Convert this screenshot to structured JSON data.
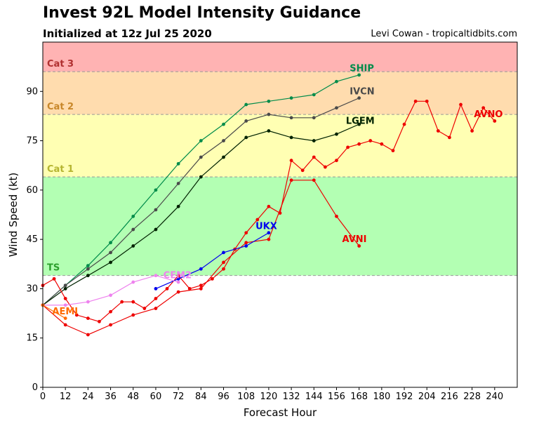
{
  "chart_data": {
    "type": "line",
    "title": "Invest 92L Model Intensity Guidance",
    "subtitle": "Initialized at 12z Jul 25 2020",
    "credit": "Levi Cowan - tropicaltidbits.com",
    "xlabel": "Forecast Hour",
    "ylabel": "Wind Speed (kt)",
    "xlim": [
      0,
      252
    ],
    "ylim": [
      0,
      105
    ],
    "xticks": [
      0,
      12,
      24,
      36,
      48,
      60,
      72,
      84,
      96,
      108,
      120,
      132,
      144,
      156,
      168,
      180,
      192,
      204,
      216,
      228,
      240
    ],
    "yticks": [
      0,
      15,
      30,
      45,
      60,
      75,
      90
    ],
    "bands": [
      {
        "name": "TS",
        "from": 34,
        "to": 64,
        "color": "#b3ffb3",
        "label_color": "#2ca02c"
      },
      {
        "name": "Cat 1",
        "from": 64,
        "to": 83,
        "color": "#ffffb3",
        "label_color": "#b5b530"
      },
      {
        "name": "Cat 2",
        "from": 83,
        "to": 96,
        "color": "#ffdcae",
        "label_color": "#c8872a"
      },
      {
        "name": "Cat 3",
        "from": 96,
        "to": 105,
        "color": "#ffb3b3",
        "label_color": "#b03030"
      }
    ],
    "series": [
      {
        "name": "SHIP",
        "color": "#008c4a",
        "x": [
          0,
          12,
          24,
          36,
          48,
          60,
          72,
          84,
          96,
          108,
          120,
          132,
          144,
          156,
          168
        ],
        "y": [
          25,
          31,
          37,
          44,
          52,
          60,
          68,
          75,
          80,
          86,
          87,
          88,
          89,
          93,
          95
        ]
      },
      {
        "name": "IVCN",
        "color": "#4a4a4a",
        "x": [
          0,
          12,
          24,
          36,
          48,
          60,
          72,
          84,
          96,
          108,
          120,
          132,
          144,
          156,
          168
        ],
        "y": [
          25,
          31,
          36,
          41,
          48,
          54,
          62,
          70,
          75,
          81,
          83,
          82,
          82,
          85,
          88
        ]
      },
      {
        "name": "LGEM",
        "color": "#002200",
        "x": [
          0,
          12,
          24,
          36,
          48,
          60,
          72,
          84,
          96,
          108,
          120,
          132,
          144,
          156,
          168
        ],
        "y": [
          25,
          30,
          34,
          38,
          43,
          48,
          55,
          64,
          70,
          76,
          78,
          76,
          75,
          77,
          80
        ]
      },
      {
        "name": "AVNO",
        "color": "#ee0000",
        "x": [
          0,
          6,
          12,
          18,
          24,
          30,
          36,
          42,
          48,
          54,
          60,
          66,
          72,
          78,
          84,
          90,
          96,
          102,
          108,
          114,
          120,
          126,
          132,
          138,
          144,
          150,
          156,
          162,
          168,
          174,
          180,
          186,
          192,
          198,
          204,
          210,
          216,
          222,
          228,
          234,
          240
        ],
        "y": [
          31,
          33,
          27,
          22,
          21,
          20,
          23,
          26,
          26,
          24,
          27,
          30,
          34,
          30,
          31,
          33,
          36,
          42,
          47,
          51,
          55,
          53,
          69,
          66,
          70,
          67,
          69,
          73,
          74,
          75,
          74,
          72,
          80,
          87,
          87,
          78,
          76,
          86,
          78,
          85,
          81
        ]
      },
      {
        "name": "AVNI",
        "color": "#ee0000",
        "x": [
          0,
          12,
          24,
          36,
          48,
          60,
          72,
          84,
          96,
          108,
          120,
          132,
          144,
          156,
          168
        ],
        "y": [
          25,
          19,
          16,
          19,
          22,
          24,
          29,
          30,
          38,
          44,
          45,
          63,
          63,
          52,
          43
        ]
      },
      {
        "name": "UKX",
        "color": "#0000ee",
        "x": [
          60,
          72,
          84,
          96,
          108,
          120
        ],
        "y": [
          30,
          33,
          36,
          41,
          43,
          47
        ]
      },
      {
        "name": "CEM2",
        "color": "#ee82ee",
        "x": [
          0,
          12,
          24,
          36,
          48,
          60,
          72
        ],
        "y": [
          25,
          25,
          26,
          28,
          32,
          34,
          32
        ]
      },
      {
        "name": "AEMI",
        "color": "#ff6a00",
        "x": [
          0,
          12
        ],
        "y": [
          25,
          21
        ]
      }
    ],
    "labels": [
      {
        "text": "SHIP",
        "color": "#008c4a"
      },
      {
        "text": "IVCN",
        "color": "#4a4a4a"
      },
      {
        "text": "LGEM",
        "color": "#002200"
      },
      {
        "text": "AVNO",
        "color": "#ee0000"
      },
      {
        "text": "AVNI",
        "color": "#ee0000"
      },
      {
        "text": "UKX",
        "color": "#0000ee"
      },
      {
        "text": "CEM2",
        "color": "#ee82ee"
      },
      {
        "text": "AEMI",
        "color": "#ff6a00"
      }
    ]
  }
}
